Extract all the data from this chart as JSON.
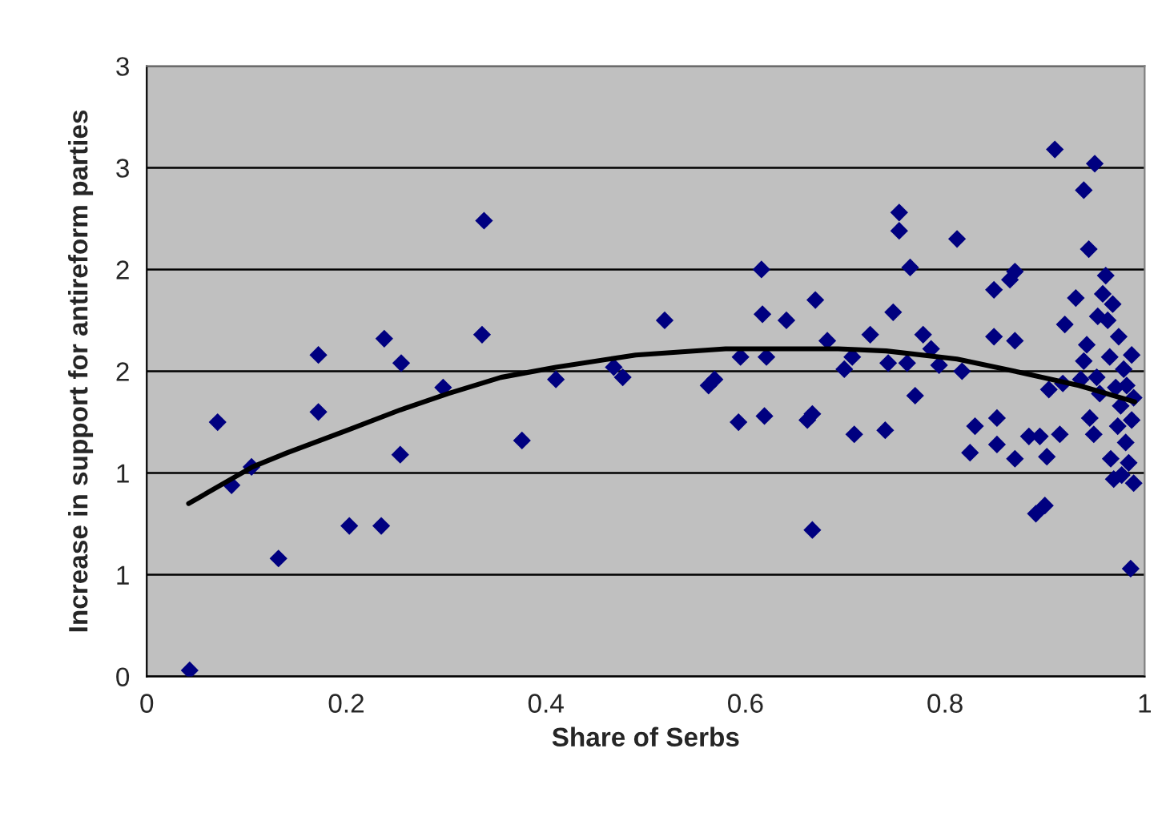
{
  "chart_data": {
    "type": "scatter",
    "xlabel": "Share of Serbs",
    "ylabel": "Increase in support for antireform parties",
    "xlim": [
      0,
      1
    ],
    "xticks": [
      0,
      0.2,
      0.4,
      0.6,
      0.8,
      1
    ],
    "ylim": [
      0,
      3
    ],
    "yticks": [
      0,
      {
        "value": 0.5,
        "label": "1"
      },
      1,
      {
        "value": 1.5,
        "label": "2"
      },
      2,
      {
        "value": 2.5,
        "label": "3"
      },
      3
    ],
    "grid": "y",
    "legend": false,
    "series": [
      {
        "marker": "diamond",
        "color": "#000080",
        "x": [
          0.043,
          0.071,
          0.085,
          0.105,
          0.132,
          0.172,
          0.172,
          0.203,
          0.238,
          0.235,
          0.254,
          0.255,
          0.297,
          0.338,
          0.336,
          0.376,
          0.41,
          0.468,
          0.477,
          0.519,
          0.563,
          0.569,
          0.593,
          0.595,
          0.616,
          0.617,
          0.621,
          0.619,
          0.641,
          0.662,
          0.667,
          0.67,
          0.667,
          0.682,
          0.699,
          0.707,
          0.709,
          0.725,
          0.743,
          0.74,
          0.748,
          0.754,
          0.754,
          0.765,
          0.762,
          0.77,
          0.778,
          0.786,
          0.794,
          0.812,
          0.817,
          0.83,
          0.825,
          0.849,
          0.852,
          0.849,
          0.865,
          0.87,
          0.852,
          0.87,
          0.87,
          0.884,
          0.895,
          0.891,
          0.9,
          0.902,
          0.904,
          0.91,
          0.915,
          0.918,
          0.92,
          0.931,
          0.939,
          0.944,
          0.95,
          0.936,
          0.939,
          0.942,
          0.945,
          0.949,
          0.952,
          0.955,
          0.958,
          0.961,
          0.963,
          0.965,
          0.966,
          0.969,
          0.971,
          0.973,
          0.974,
          0.976,
          0.977,
          0.979,
          0.981,
          0.982,
          0.984,
          0.986,
          0.987,
          0.987,
          0.989,
          0.989,
          0.968,
          0.953
        ],
        "values": [
          0.03,
          1.25,
          0.94,
          1.03,
          0.58,
          1.58,
          1.3,
          0.74,
          1.66,
          0.74,
          1.09,
          1.54,
          1.42,
          2.24,
          1.68,
          1.16,
          1.46,
          1.52,
          1.47,
          1.75,
          1.43,
          1.46,
          1.25,
          1.57,
          2.0,
          1.78,
          1.57,
          1.28,
          1.75,
          1.26,
          1.29,
          1.85,
          0.72,
          1.65,
          1.51,
          1.57,
          1.19,
          1.68,
          1.54,
          1.21,
          1.79,
          2.28,
          2.19,
          2.01,
          1.54,
          1.38,
          1.68,
          1.61,
          1.53,
          2.15,
          1.5,
          1.23,
          1.1,
          1.67,
          1.14,
          1.9,
          1.95,
          1.99,
          1.27,
          1.65,
          1.07,
          1.18,
          1.18,
          0.8,
          0.84,
          1.08,
          1.41,
          2.59,
          1.19,
          1.44,
          1.73,
          1.86,
          2.39,
          2.1,
          2.52,
          1.46,
          1.55,
          1.63,
          1.27,
          1.19,
          1.47,
          1.39,
          1.88,
          1.97,
          1.75,
          1.57,
          1.07,
          0.97,
          1.42,
          1.23,
          1.67,
          1.33,
          0.99,
          1.51,
          1.15,
          1.43,
          1.05,
          0.53,
          1.26,
          1.58,
          1.37,
          0.95,
          1.83,
          1.77
        ]
      },
      {
        "type": "line",
        "marker": "none",
        "line_style": "solid",
        "color": "#000000",
        "x": [
          0.042,
          0.106,
          0.141,
          0.201,
          0.254,
          0.302,
          0.355,
          0.41,
          0.49,
          0.58,
          0.693,
          0.741,
          0.812,
          0.87,
          0.934,
          0.99
        ],
        "values": [
          0.85,
          1.03,
          1.1,
          1.21,
          1.31,
          1.39,
          1.47,
          1.52,
          1.58,
          1.61,
          1.61,
          1.6,
          1.56,
          1.5,
          1.43,
          1.35
        ]
      }
    ]
  }
}
